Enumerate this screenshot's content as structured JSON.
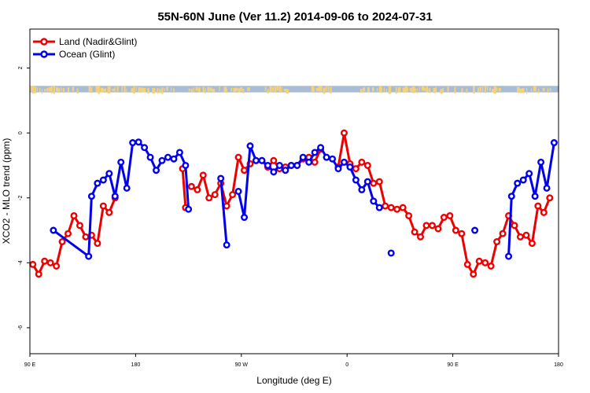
{
  "chart_data": {
    "type": "line",
    "title": "55N-60N June (Ver 11.2)   2014-09-06 to 2024-07-31",
    "xlabel": "Longitude (deg E)",
    "ylabel": "XCO2 - MLO trend (ppm)",
    "xlim": [
      0,
      360
    ],
    "ylim": [
      -6.8,
      3.2
    ],
    "xticks": [
      {
        "value": 0,
        "label": "90 E"
      },
      {
        "value": 72,
        "label": "180"
      },
      {
        "value": 144,
        "label": "90 W"
      },
      {
        "value": 216,
        "label": "0"
      },
      {
        "value": 288,
        "label": "90 E"
      },
      {
        "value": 360,
        "label": "180"
      }
    ],
    "yticks": [
      {
        "value": 2,
        "label": "2"
      },
      {
        "value": 0,
        "label": "0"
      },
      {
        "value": -2,
        "label": "-2"
      },
      {
        "value": -4,
        "label": "-4"
      },
      {
        "value": -6,
        "label": "-6"
      }
    ],
    "legend_position": "top-left",
    "land_mask_band": {
      "y_from": 1.25,
      "y_to": 1.45,
      "land_color": "#f5d27a",
      "ocean_color": "#a9bcd6"
    },
    "series": [
      {
        "name": "Land (Nadir&Glint)",
        "color": "#ee0000",
        "segments": [
          [
            [
              2,
              -4.05
            ],
            [
              6,
              -4.35
            ],
            [
              10,
              -3.95
            ],
            [
              14,
              -4.0
            ],
            [
              18,
              -4.1
            ],
            [
              22,
              -3.35
            ],
            [
              26,
              -3.1
            ],
            [
              30,
              -2.55
            ],
            [
              34,
              -2.85
            ],
            [
              38,
              -3.2
            ],
            [
              42,
              -3.15
            ],
            [
              46,
              -3.4
            ],
            [
              50,
              -2.25
            ],
            [
              54,
              -2.45
            ],
            [
              58,
              -2.0
            ]
          ],
          [
            [
              104,
              -1.1
            ],
            [
              106,
              -2.3
            ]
          ],
          [
            [
              110,
              -1.65
            ],
            [
              114,
              -1.75
            ],
            [
              118,
              -1.3
            ],
            [
              122,
              -2.0
            ],
            [
              126,
              -1.9
            ],
            [
              130,
              -1.55
            ],
            [
              134,
              -2.25
            ],
            [
              138,
              -1.9
            ],
            [
              142,
              -0.75
            ],
            [
              146,
              -1.15
            ],
            [
              150,
              -0.95
            ],
            [
              154,
              -0.85
            ],
            [
              158,
              -0.85
            ],
            [
              162,
              -1.05
            ],
            [
              166,
              -0.85
            ],
            [
              170,
              -1.1
            ],
            [
              174,
              -1.05
            ],
            [
              178,
              -1.0
            ],
            [
              182,
              -1.0
            ],
            [
              186,
              -0.8
            ],
            [
              190,
              -0.75
            ],
            [
              194,
              -0.9
            ],
            [
              198,
              -0.5
            ]
          ],
          [
            [
              210,
              -1.05
            ],
            [
              214,
              0.0
            ],
            [
              218,
              -0.95
            ],
            [
              222,
              -1.1
            ],
            [
              226,
              -0.9
            ],
            [
              230,
              -1.0
            ],
            [
              234,
              -1.55
            ],
            [
              238,
              -1.5
            ],
            [
              242,
              -2.25
            ],
            [
              246,
              -2.3
            ],
            [
              250,
              -2.35
            ],
            [
              254,
              -2.3
            ],
            [
              258,
              -2.55
            ],
            [
              262,
              -3.05
            ],
            [
              266,
              -3.2
            ],
            [
              270,
              -2.85
            ],
            [
              274,
              -2.85
            ],
            [
              278,
              -2.95
            ],
            [
              282,
              -2.6
            ],
            [
              286,
              -2.55
            ],
            [
              290,
              -3.0
            ],
            [
              294,
              -3.1
            ],
            [
              298,
              -4.05
            ],
            [
              302,
              -4.35
            ],
            [
              306,
              -3.95
            ],
            [
              310,
              -4.0
            ],
            [
              314,
              -4.1
            ],
            [
              318,
              -3.35
            ],
            [
              322,
              -3.1
            ],
            [
              326,
              -2.55
            ],
            [
              330,
              -2.85
            ],
            [
              334,
              -3.2
            ],
            [
              338,
              -3.15
            ],
            [
              342,
              -3.4
            ],
            [
              346,
              -2.25
            ],
            [
              350,
              -2.45
            ],
            [
              354,
              -2.0
            ]
          ]
        ],
        "singles": []
      },
      {
        "name": "Ocean (Glint)",
        "color": "#0000ee",
        "segments": [
          [
            [
              16,
              -3.0
            ],
            [
              40,
              -3.8
            ],
            [
              42,
              -1.95
            ],
            [
              46,
              -1.55
            ],
            [
              50,
              -1.45
            ],
            [
              54,
              -1.25
            ],
            [
              58,
              -1.95
            ],
            [
              62,
              -0.9
            ],
            [
              66,
              -1.7
            ],
            [
              70,
              -0.3
            ],
            [
              74,
              -0.28
            ],
            [
              78,
              -0.45
            ],
            [
              82,
              -0.75
            ],
            [
              86,
              -1.15
            ],
            [
              90,
              -0.85
            ],
            [
              94,
              -0.75
            ],
            [
              98,
              -0.8
            ],
            [
              102,
              -0.6
            ],
            [
              106,
              -1.0
            ],
            [
              108,
              -2.35
            ]
          ],
          [
            [
              130,
              -1.4
            ],
            [
              134,
              -3.45
            ]
          ],
          [
            [
              142,
              -1.8
            ],
            [
              146,
              -2.6
            ],
            [
              150,
              -0.4
            ],
            [
              154,
              -0.85
            ],
            [
              158,
              -0.85
            ],
            [
              162,
              -1.0
            ],
            [
              166,
              -1.2
            ],
            [
              170,
              -1.0
            ],
            [
              174,
              -1.15
            ],
            [
              178,
              -1.0
            ],
            [
              182,
              -1.0
            ],
            [
              186,
              -0.75
            ],
            [
              190,
              -0.9
            ],
            [
              194,
              -0.6
            ],
            [
              198,
              -0.45
            ],
            [
              202,
              -0.75
            ],
            [
              206,
              -0.8
            ],
            [
              210,
              -1.1
            ],
            [
              214,
              -0.9
            ],
            [
              218,
              -1.05
            ],
            [
              222,
              -1.45
            ],
            [
              226,
              -1.75
            ],
            [
              230,
              -1.5
            ],
            [
              234,
              -2.1
            ],
            [
              238,
              -2.3
            ]
          ],
          [
            [
              326,
              -3.8
            ],
            [
              328,
              -1.95
            ],
            [
              332,
              -1.55
            ],
            [
              336,
              -1.45
            ],
            [
              340,
              -1.25
            ],
            [
              344,
              -1.95
            ],
            [
              348,
              -0.9
            ],
            [
              352,
              -1.7
            ],
            [
              357,
              -0.3
            ]
          ]
        ],
        "singles": [
          [
            246,
            -3.7
          ],
          [
            303,
            -3.0
          ]
        ]
      }
    ]
  }
}
